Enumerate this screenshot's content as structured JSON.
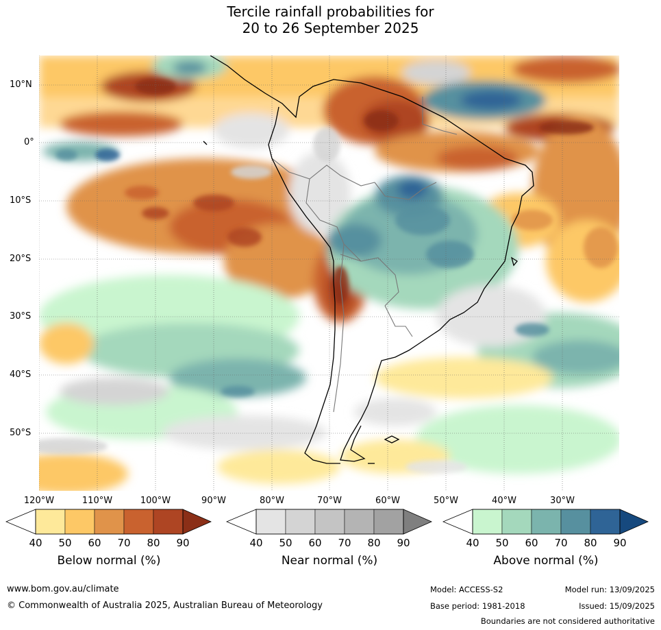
{
  "title": {
    "line1": "Tercile rainfall probabilities for",
    "line2": "20 to 26 September 2025"
  },
  "map": {
    "lat_labels": [
      "10°N",
      "0°",
      "10°S",
      "20°S",
      "30°S",
      "40°S",
      "50°S"
    ],
    "lon_labels": [
      "120°W",
      "110°W",
      "100°W",
      "90°W",
      "80°W",
      "70°W",
      "60°W",
      "50°W",
      "40°W",
      "30°W"
    ]
  },
  "colorbars": {
    "below": {
      "title": "Below normal (%)",
      "ticks": [
        "40",
        "50",
        "60",
        "70",
        "80",
        "90"
      ],
      "colors": [
        "#fee99a",
        "#fdc866",
        "#e0934a",
        "#c9622f",
        "#ae4523",
        "#8b2f17"
      ]
    },
    "near": {
      "title": "Near normal (%)",
      "ticks": [
        "40",
        "50",
        "60",
        "70",
        "80",
        "90"
      ],
      "colors": [
        "#e4e4e4",
        "#d4d4d4",
        "#c4c4c4",
        "#b4b4b4",
        "#a2a2a2",
        "#7f7f7f"
      ]
    },
    "above": {
      "title": "Above normal (%)",
      "ticks": [
        "40",
        "50",
        "60",
        "70",
        "80",
        "90"
      ],
      "colors": [
        "#c9f5cf",
        "#a4d8bc",
        "#7bb4ad",
        "#57909f",
        "#2f6496",
        "#16497e"
      ]
    }
  },
  "footer": {
    "website": "www.bom.gov.au/climate",
    "copyright": "© Commonwealth of Australia 2025, Australian Bureau of Meteorology",
    "model": "Model: ACCESS-S2",
    "base_period": "Base period: 1981-2018",
    "model_run": "Model run: 13/09/2025",
    "issued": "Issued: 15/09/2025",
    "disclaimer": "Boundaries are not considered authoritative"
  }
}
